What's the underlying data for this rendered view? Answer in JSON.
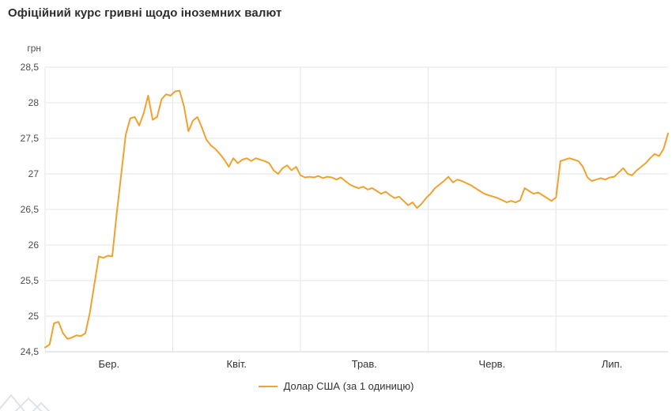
{
  "colors": {
    "line": "#F0A22E",
    "grid": "#e6e6e6",
    "axis": "#cfd4d9",
    "title_text": "#2d2d2d",
    "tick_text": "#4d4d4d"
  },
  "legend": {
    "label": "Долар США (за 1 одиницю)"
  },
  "chart_data": {
    "type": "line",
    "title": "Офіційний курс гривні щодо іноземних валют",
    "ylabel": "грн",
    "xlabel": "",
    "ylim": [
      24.5,
      28.5
    ],
    "grid": true,
    "legend_position": "bottom",
    "y_tick_values": [
      28.5,
      28,
      27.5,
      27,
      26.5,
      26,
      25.5,
      25,
      24.5
    ],
    "y_tick_labels": [
      "28,5",
      "28",
      "27,5",
      "27",
      "26,5",
      "26",
      "25,5",
      "25",
      "24,5"
    ],
    "x_tick_labels": [
      "Бер.",
      "Квіт.",
      "Трав.",
      "Черв.",
      "Лип."
    ],
    "series": [
      {
        "name": "Долар США (за 1 одиницю)",
        "color": "#F0A22E",
        "values": [
          24.56,
          24.6,
          24.9,
          24.92,
          24.76,
          24.68,
          24.7,
          24.73,
          24.72,
          24.76,
          25.05,
          25.45,
          25.84,
          25.82,
          25.85,
          25.84,
          26.45,
          27.0,
          27.55,
          27.78,
          27.8,
          27.68,
          27.85,
          28.1,
          27.76,
          27.8,
          28.05,
          28.12,
          28.1,
          28.16,
          28.17,
          27.95,
          27.6,
          27.75,
          27.8,
          27.65,
          27.48,
          27.4,
          27.35,
          27.28,
          27.2,
          27.1,
          27.22,
          27.15,
          27.2,
          27.22,
          27.18,
          27.22,
          27.2,
          27.18,
          27.15,
          27.05,
          27.0,
          27.08,
          27.12,
          27.05,
          27.1,
          26.98,
          26.95,
          26.96,
          26.95,
          26.97,
          26.94,
          26.96,
          26.95,
          26.92,
          26.95,
          26.9,
          26.85,
          26.82,
          26.8,
          26.82,
          26.78,
          26.8,
          26.76,
          26.72,
          26.75,
          26.7,
          26.66,
          26.68,
          26.62,
          26.56,
          26.6,
          26.52,
          26.58,
          26.66,
          26.72,
          26.8,
          26.85,
          26.9,
          26.96,
          26.88,
          26.92,
          26.9,
          26.87,
          26.84,
          26.8,
          26.76,
          26.72,
          26.7,
          26.68,
          26.66,
          26.63,
          26.6,
          26.62,
          26.6,
          26.63,
          26.8,
          26.76,
          26.72,
          26.74,
          26.7,
          26.66,
          26.62,
          26.67,
          27.18,
          27.2,
          27.22,
          27.2,
          27.18,
          27.1,
          26.95,
          26.9,
          26.92,
          26.94,
          26.92,
          26.95,
          26.96,
          27.02,
          27.08,
          27.0,
          26.98,
          27.05,
          27.1,
          27.15,
          27.22,
          27.28,
          27.25,
          27.35,
          27.57
        ]
      }
    ]
  }
}
